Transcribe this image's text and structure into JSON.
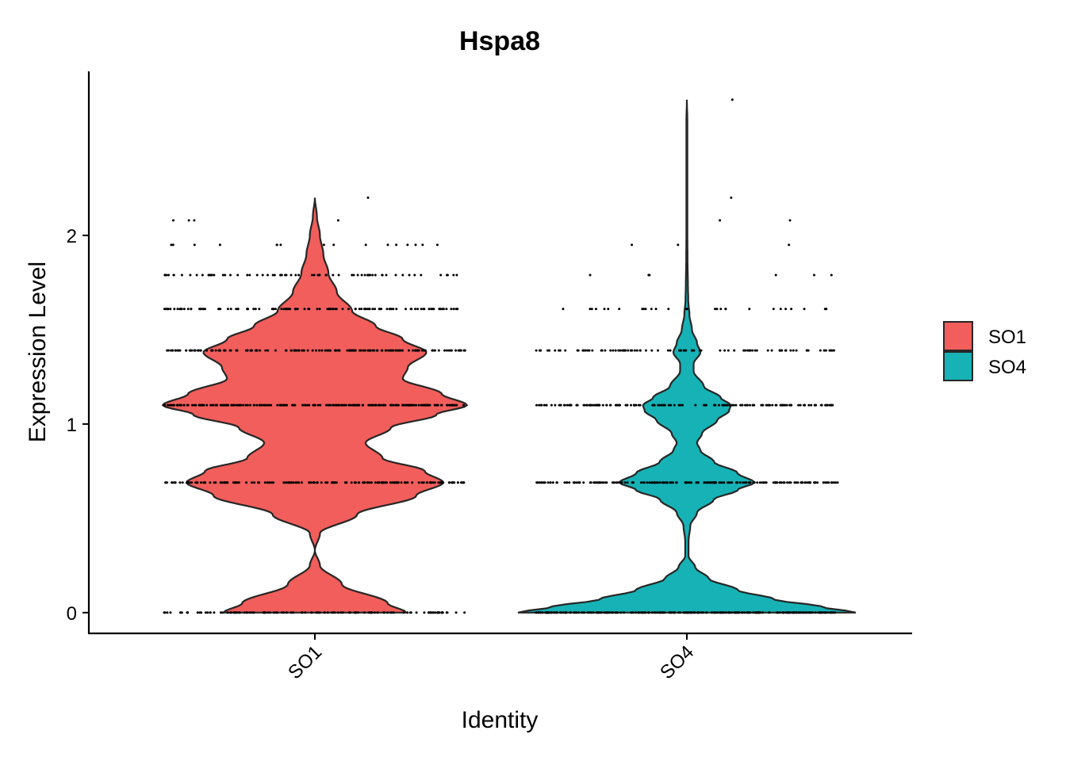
{
  "chart_data": {
    "type": "violin",
    "title": "Hspa8",
    "xlabel": "Identity",
    "ylabel": "Expression Level",
    "categories": [
      "SO1",
      "SO4"
    ],
    "ylim": [
      -0.11,
      2.87
    ],
    "yticks": [
      {
        "value": 0,
        "label": "0"
      },
      {
        "value": 1,
        "label": "1"
      },
      {
        "value": 2,
        "label": "2"
      }
    ],
    "colors": {
      "SO1": "#F15E5B",
      "SO4": "#17B2B5"
    },
    "legend": {
      "position": "right",
      "entries": [
        "SO1",
        "SO4"
      ]
    },
    "grid": false,
    "series": [
      {
        "name": "SO1",
        "color": "#F15E5B",
        "ymax": 2.2,
        "density": [
          [
            0.0,
            0.54
          ],
          [
            0.05,
            0.43
          ],
          [
            0.15,
            0.16
          ],
          [
            0.25,
            0.03
          ],
          [
            0.33,
            0.0
          ],
          [
            0.42,
            0.03
          ],
          [
            0.52,
            0.25
          ],
          [
            0.62,
            0.6
          ],
          [
            0.69,
            0.76
          ],
          [
            0.75,
            0.65
          ],
          [
            0.82,
            0.4
          ],
          [
            0.9,
            0.3
          ],
          [
            0.98,
            0.45
          ],
          [
            1.05,
            0.72
          ],
          [
            1.1,
            0.9
          ],
          [
            1.16,
            0.75
          ],
          [
            1.24,
            0.52
          ],
          [
            1.3,
            0.55
          ],
          [
            1.38,
            0.66
          ],
          [
            1.45,
            0.52
          ],
          [
            1.52,
            0.36
          ],
          [
            1.6,
            0.22
          ],
          [
            1.7,
            0.13
          ],
          [
            1.8,
            0.08
          ],
          [
            1.9,
            0.05
          ],
          [
            2.0,
            0.03
          ],
          [
            2.1,
            0.012
          ],
          [
            2.2,
            0.0
          ]
        ],
        "points": [
          {
            "y": 0.0,
            "n": 130
          },
          {
            "y": 0.69,
            "n": 170
          },
          {
            "y": 1.1,
            "n": 220
          },
          {
            "y": 1.39,
            "n": 160
          },
          {
            "y": 1.61,
            "n": 110
          },
          {
            "y": 1.79,
            "n": 70
          },
          {
            "y": 1.95,
            "n": 16
          },
          {
            "y": 2.08,
            "n": 4
          },
          {
            "y": 2.2,
            "n": 1
          }
        ]
      },
      {
        "name": "SO4",
        "color": "#17B2B5",
        "ymax": 2.72,
        "density": [
          [
            0.0,
            1.0
          ],
          [
            0.03,
            0.8
          ],
          [
            0.07,
            0.52
          ],
          [
            0.12,
            0.3
          ],
          [
            0.18,
            0.13
          ],
          [
            0.24,
            0.05
          ],
          [
            0.3,
            0.01
          ],
          [
            0.38,
            0.01
          ],
          [
            0.46,
            0.02
          ],
          [
            0.53,
            0.06
          ],
          [
            0.6,
            0.16
          ],
          [
            0.65,
            0.3
          ],
          [
            0.69,
            0.4
          ],
          [
            0.74,
            0.3
          ],
          [
            0.8,
            0.16
          ],
          [
            0.86,
            0.08
          ],
          [
            0.9,
            0.06
          ],
          [
            0.95,
            0.09
          ],
          [
            1.02,
            0.18
          ],
          [
            1.07,
            0.25
          ],
          [
            1.1,
            0.26
          ],
          [
            1.14,
            0.2
          ],
          [
            1.2,
            0.1
          ],
          [
            1.28,
            0.04
          ],
          [
            1.32,
            0.04
          ],
          [
            1.38,
            0.08
          ],
          [
            1.43,
            0.06
          ],
          [
            1.5,
            0.03
          ],
          [
            1.58,
            0.015
          ],
          [
            1.66,
            0.008
          ],
          [
            1.75,
            0.006
          ],
          [
            1.85,
            0.004
          ],
          [
            2.0,
            0.003
          ],
          [
            2.3,
            0.003
          ],
          [
            2.6,
            0.003
          ],
          [
            2.72,
            0.0
          ]
        ],
        "points": [
          {
            "y": 0.0,
            "n": 260
          },
          {
            "y": 0.69,
            "n": 190
          },
          {
            "y": 1.1,
            "n": 150
          },
          {
            "y": 1.39,
            "n": 90
          },
          {
            "y": 1.61,
            "n": 28
          },
          {
            "y": 1.79,
            "n": 6
          },
          {
            "y": 1.95,
            "n": 3
          },
          {
            "y": 2.08,
            "n": 2
          },
          {
            "y": 2.2,
            "n": 1
          },
          {
            "y": 2.72,
            "n": 1
          }
        ]
      }
    ]
  }
}
